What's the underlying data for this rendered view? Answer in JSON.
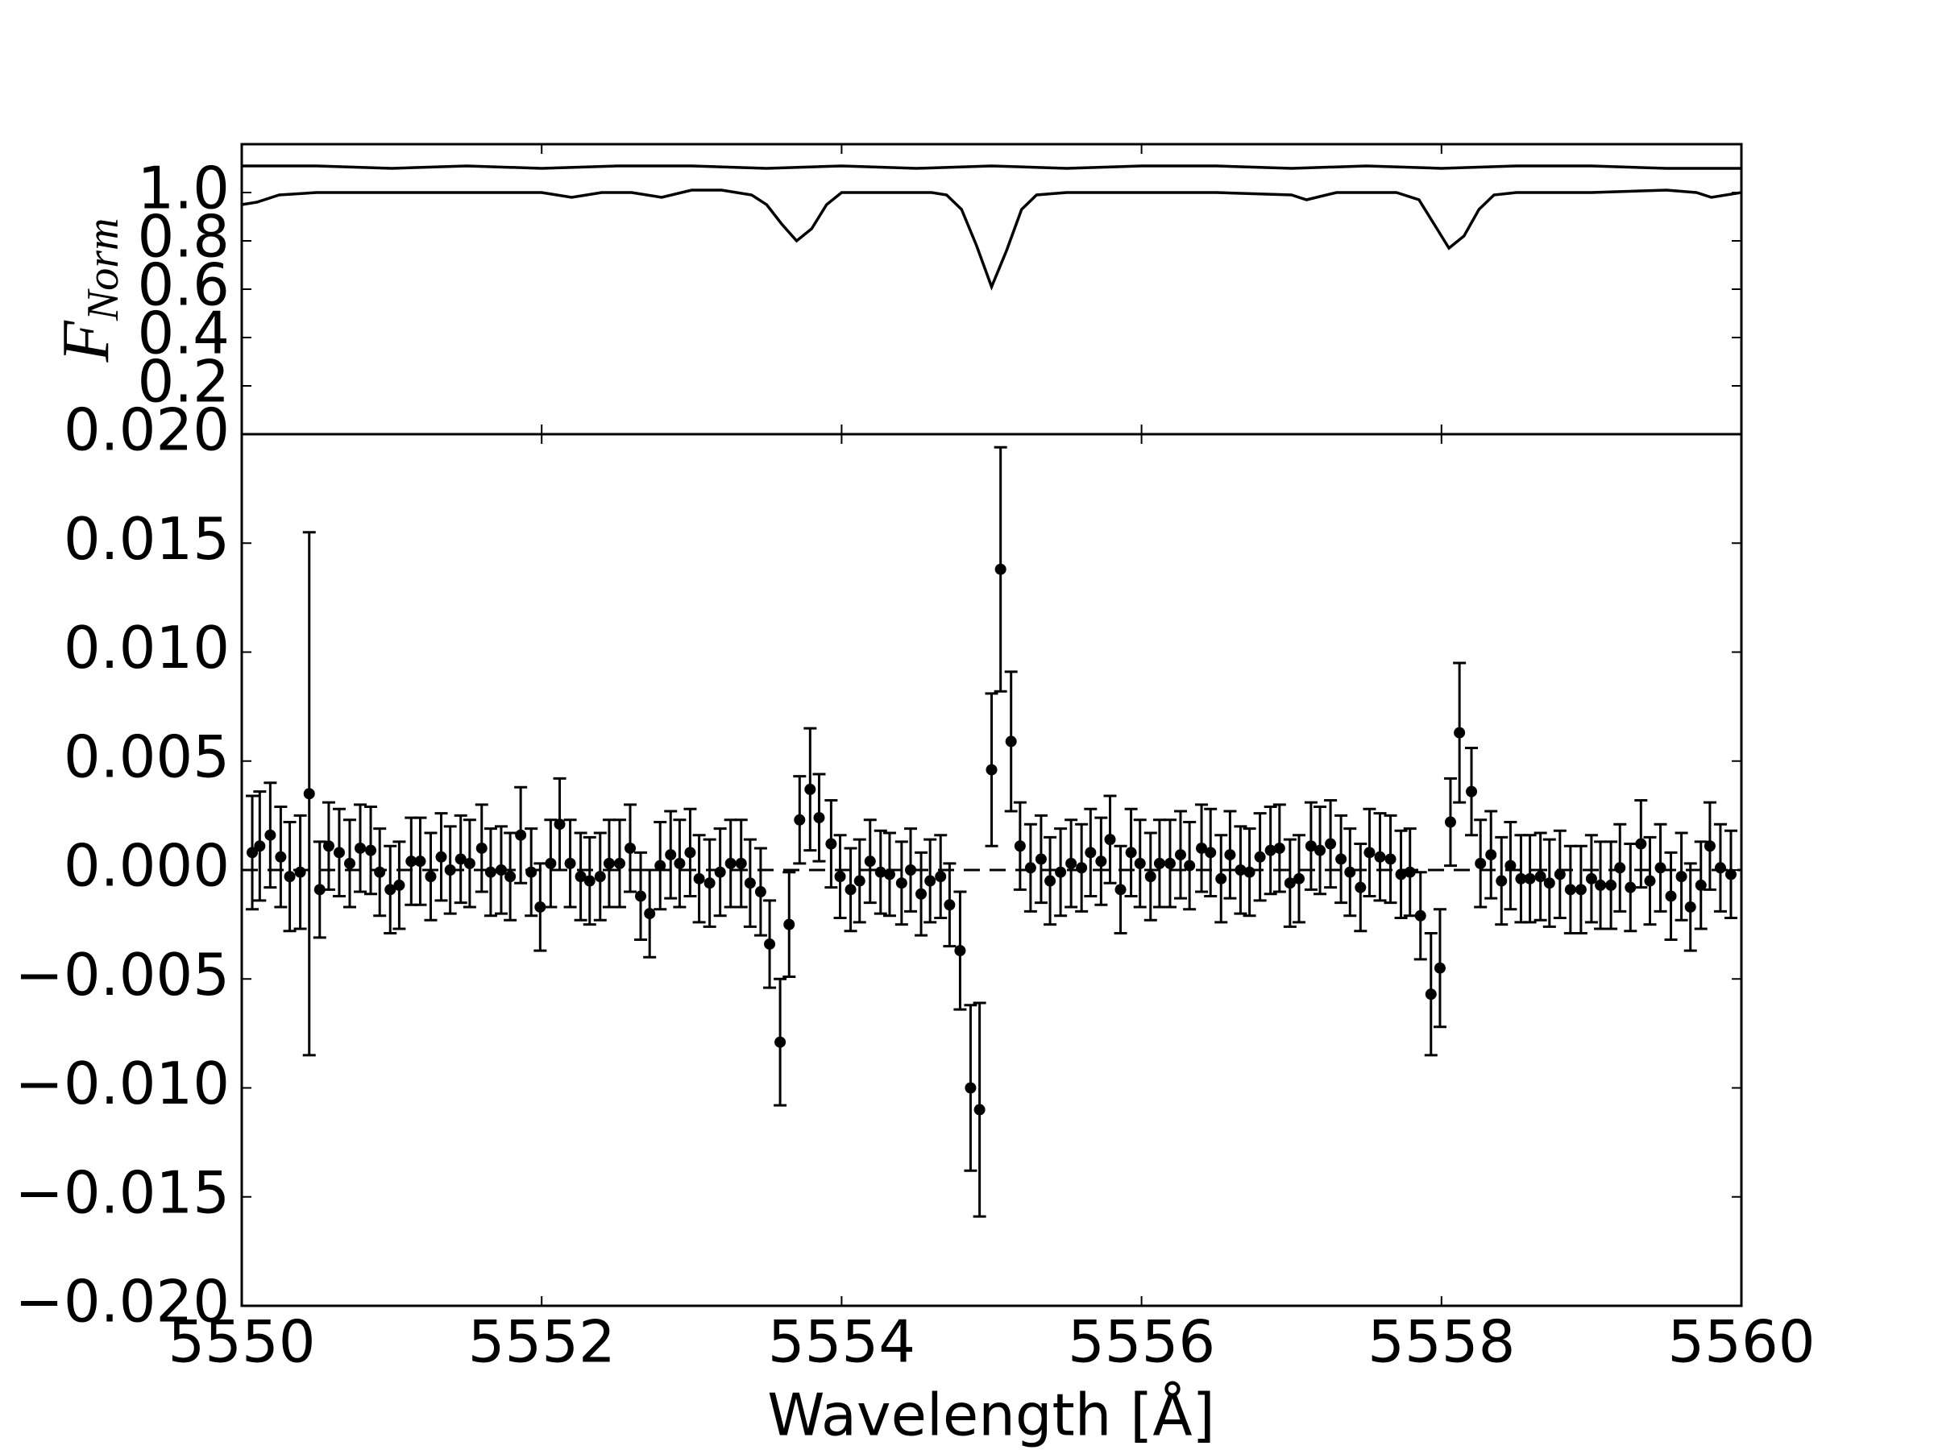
{
  "chart_data": [
    {
      "type": "line",
      "ylabel": "F",
      "ylabel_sub": "Norm",
      "xlim": [
        5550,
        5560
      ],
      "ylim": [
        0,
        1.2
      ],
      "yticks": [
        0.2,
        0.4,
        0.6,
        0.8,
        {
          "value": 1,
          "label": "1.0"
        }
      ],
      "series": [
        {
          "color": "#000000",
          "x": [
            5550,
            5550.5,
            5551,
            5551.5,
            5552,
            5552.5,
            5553,
            5553.5,
            5554,
            5554.5,
            5555,
            5555.5,
            5556,
            5556.5,
            5557,
            5557.5,
            5558,
            5558.5,
            5559,
            5559.5,
            5560
          ],
          "values": [
            1.11,
            1.11,
            1.1,
            1.11,
            1.1,
            1.11,
            1.11,
            1.1,
            1.11,
            1.1,
            1.11,
            1.1,
            1.11,
            1.11,
            1.1,
            1.11,
            1.1,
            1.11,
            1.11,
            1.1,
            1.1
          ]
        },
        {
          "color": "#000000",
          "x": [
            5550,
            5550.1,
            5550.25,
            5550.5,
            5551,
            5551.5,
            5552,
            5552.2,
            5552.4,
            5552.6,
            5552.8,
            5553,
            5553.2,
            5553.4,
            5553.5,
            5553.6,
            5553.7,
            5553.8,
            5553.9,
            5554,
            5554.3,
            5554.6,
            5554.7,
            5554.8,
            5554.9,
            5555,
            5555.1,
            5555.2,
            5555.3,
            5555.5,
            5556,
            5556.5,
            5557,
            5557.1,
            5557.3,
            5557.7,
            5557.85,
            5557.95,
            5558.05,
            5558.15,
            5558.25,
            5558.35,
            5558.5,
            5559,
            5559.5,
            5559.7,
            5559.8,
            5560
          ],
          "values": [
            0.95,
            0.96,
            0.99,
            1.0,
            1.0,
            1.0,
            1.0,
            0.98,
            1.0,
            1.0,
            0.98,
            1.01,
            1.01,
            0.99,
            0.95,
            0.87,
            0.8,
            0.85,
            0.95,
            1.0,
            1.0,
            1.0,
            0.99,
            0.93,
            0.78,
            0.61,
            0.76,
            0.93,
            0.99,
            1.0,
            1.0,
            1.0,
            0.99,
            0.97,
            1.0,
            1.0,
            0.97,
            0.87,
            0.77,
            0.82,
            0.93,
            0.99,
            1.0,
            1.0,
            1.01,
            1.0,
            0.98,
            1.0
          ]
        }
      ]
    },
    {
      "type": "errorbar",
      "xlabel": "Wavelength [Å]",
      "xlim": [
        5550,
        5560
      ],
      "ylim": [
        -0.02,
        0.02
      ],
      "xticks": [
        5550,
        5552,
        5554,
        5556,
        5558,
        5560
      ],
      "yticks": [
        {
          "value": -0.02,
          "label": "−0.020"
        },
        {
          "value": -0.015,
          "label": "−0.015"
        },
        {
          "value": -0.01,
          "label": "−0.010"
        },
        {
          "value": -0.005,
          "label": "−0.005"
        },
        {
          "value": 0,
          "label": "0.000"
        },
        {
          "value": 0.005,
          "label": "0.005"
        },
        {
          "value": 0.01,
          "label": "0.010"
        },
        {
          "value": 0.015,
          "label": "0.015"
        },
        {
          "value": 0.02,
          "label": "0.020"
        }
      ],
      "hline": 0,
      "color": "#000000",
      "x": [
        5550.07,
        5550.12,
        5550.19,
        5550.26,
        5550.32,
        5550.39,
        5550.45,
        5550.52,
        5550.58,
        5550.65,
        5550.72,
        5550.79,
        5550.86,
        5550.92,
        5550.99,
        5551.05,
        5551.13,
        5551.19,
        5551.26,
        5551.33,
        5551.39,
        5551.46,
        5551.52,
        5551.6,
        5551.66,
        5551.73,
        5551.79,
        5551.86,
        5551.93,
        5551.99,
        5552.06,
        5552.12,
        5552.19,
        5552.26,
        5552.32,
        5552.39,
        5552.45,
        5552.52,
        5552.59,
        5552.66,
        5552.72,
        5552.79,
        5552.86,
        5552.92,
        5552.99,
        5553.05,
        5553.12,
        5553.19,
        5553.26,
        5553.33,
        5553.39,
        5553.46,
        5553.52,
        5553.59,
        5553.65,
        5553.72,
        5553.79,
        5553.85,
        5553.93,
        5553.99,
        5554.06,
        5554.12,
        5554.19,
        5554.26,
        5554.32,
        5554.4,
        5554.46,
        5554.53,
        5554.59,
        5554.66,
        5554.72,
        5554.79,
        5554.86,
        5554.92,
        5555.0,
        5555.06,
        5555.13,
        5555.19,
        5555.26,
        5555.33,
        5555.39,
        5555.46,
        5555.53,
        5555.6,
        5555.66,
        5555.73,
        5555.79,
        5555.86,
        5555.93,
        5555.99,
        5556.06,
        5556.12,
        5556.19,
        5556.26,
        5556.32,
        5556.4,
        5556.46,
        5556.53,
        5556.59,
        5556.66,
        5556.72,
        5556.79,
        5556.86,
        5556.92,
        5556.99,
        5557.05,
        5557.13,
        5557.19,
        5557.26,
        5557.33,
        5557.39,
        5557.46,
        5557.52,
        5557.59,
        5557.66,
        5557.73,
        5557.79,
        5557.86,
        5557.93,
        5557.99,
        5558.06,
        5558.12,
        5558.2,
        5558.26,
        5558.33,
        5558.4,
        5558.46,
        5558.53,
        5558.59,
        5558.66,
        5558.72,
        5558.79,
        5558.86,
        5558.93,
        5559.0,
        5559.06,
        5559.13,
        5559.19,
        5559.26,
        5559.33,
        5559.39,
        5559.46,
        5559.53,
        5559.6,
        5559.66,
        5559.73,
        5559.79,
        5559.86,
        5559.93
      ],
      "values": [
        0.0008,
        0.0011,
        0.0016,
        0.0006,
        -0.0003,
        -0.0001,
        0.0035,
        -0.0009,
        0.0011,
        0.0008,
        0.0003,
        0.001,
        0.0009,
        -0.0001,
        -0.0009,
        -0.0007,
        0.0004,
        0.0004,
        -0.0003,
        0.0006,
        0.0,
        0.0005,
        0.0003,
        0.001,
        -0.0001,
        0.0,
        -0.0003,
        0.0016,
        -0.0001,
        -0.0017,
        0.0003,
        0.0021,
        0.0003,
        -0.0003,
        -0.0005,
        -0.0003,
        0.0003,
        0.0003,
        0.001,
        -0.0012,
        -0.002,
        0.0002,
        0.0007,
        0.0003,
        0.0008,
        -0.0004,
        -0.0006,
        -0.0001,
        0.0003,
        0.0003,
        -0.0006,
        -0.001,
        -0.0034,
        -0.0079,
        -0.0025,
        0.0023,
        0.0037,
        0.0024,
        0.0012,
        -0.0003,
        -0.0009,
        -0.0005,
        0.0004,
        -0.0001,
        -0.0002,
        -0.0006,
        0.0,
        -0.0011,
        -0.0005,
        -0.0003,
        -0.0016,
        -0.0037,
        -0.01,
        -0.011,
        0.0046,
        0.0138,
        0.0059,
        0.0011,
        0.0001,
        0.0005,
        -0.0005,
        -0.0001,
        0.0003,
        0.0001,
        0.0008,
        0.0004,
        0.0014,
        -0.0009,
        0.0008,
        0.0003,
        -0.0003,
        0.0003,
        0.0003,
        0.0007,
        0.0002,
        0.001,
        0.0008,
        -0.0004,
        0.0007,
        0.0,
        -0.0001,
        0.0006,
        0.0009,
        0.001,
        -0.0006,
        -0.0004,
        0.0011,
        0.0009,
        0.0012,
        0.0005,
        -0.0001,
        -0.0008,
        0.0008,
        0.0006,
        0.0005,
        -0.0002,
        -0.0001,
        -0.0021,
        -0.0057,
        -0.0045,
        0.0022,
        0.0063,
        0.0036,
        0.0003,
        0.0007,
        -0.0005,
        0.0002,
        -0.0004,
        -0.0004,
        -0.0003,
        -0.0006,
        -0.0002,
        -0.0009,
        -0.0009,
        -0.0004,
        -0.0007,
        -0.0007,
        0.0001,
        -0.0008,
        0.0012,
        -0.0005,
        0.0001,
        -0.0012,
        -0.0003,
        -0.0017,
        -0.0007,
        0.0011,
        0.0001,
        -0.0002
      ],
      "errors": [
        0.0026,
        0.0025,
        0.0024,
        0.0023,
        0.0025,
        0.0026,
        0.012,
        0.0022,
        0.002,
        0.002,
        0.002,
        0.002,
        0.002,
        0.002,
        0.002,
        0.002,
        0.002,
        0.002,
        0.002,
        0.002,
        0.002,
        0.002,
        0.002,
        0.002,
        0.002,
        0.002,
        0.002,
        0.0022,
        0.002,
        0.002,
        0.002,
        0.0021,
        0.002,
        0.002,
        0.002,
        0.002,
        0.002,
        0.002,
        0.002,
        0.002,
        0.002,
        0.002,
        0.002,
        0.002,
        0.002,
        0.002,
        0.002,
        0.002,
        0.002,
        0.002,
        0.002,
        0.002,
        0.002,
        0.0029,
        0.0024,
        0.002,
        0.0028,
        0.002,
        0.002,
        0.0019,
        0.0019,
        0.0019,
        0.0019,
        0.0019,
        0.0019,
        0.0019,
        0.0019,
        0.0019,
        0.0019,
        0.0019,
        0.0019,
        0.0027,
        0.0038,
        0.0049,
        0.0035,
        0.0056,
        0.0032,
        0.002,
        0.002,
        0.002,
        0.002,
        0.002,
        0.002,
        0.002,
        0.002,
        0.002,
        0.002,
        0.002,
        0.002,
        0.002,
        0.002,
        0.002,
        0.002,
        0.002,
        0.002,
        0.002,
        0.002,
        0.002,
        0.002,
        0.002,
        0.002,
        0.002,
        0.002,
        0.002,
        0.002,
        0.002,
        0.002,
        0.002,
        0.002,
        0.002,
        0.002,
        0.002,
        0.002,
        0.002,
        0.002,
        0.002,
        0.002,
        0.002,
        0.0028,
        0.0027,
        0.002,
        0.0032,
        0.002,
        0.002,
        0.002,
        0.002,
        0.002,
        0.002,
        0.002,
        0.002,
        0.002,
        0.002,
        0.002,
        0.002,
        0.002,
        0.002,
        0.002,
        0.002,
        0.002,
        0.002,
        0.002,
        0.002,
        0.002,
        0.002,
        0.002,
        0.002,
        0.002,
        0.002,
        0.002
      ]
    }
  ]
}
